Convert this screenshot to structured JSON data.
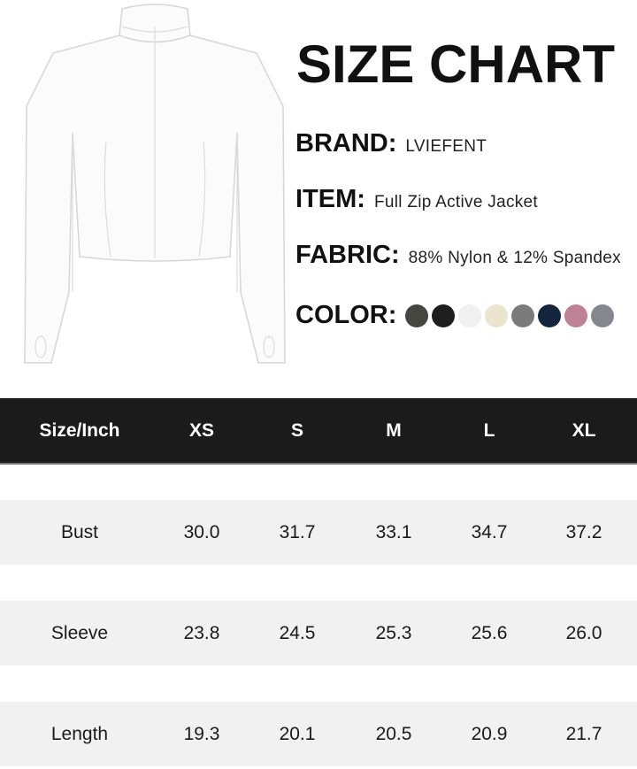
{
  "title": "SIZE CHART",
  "brand": {
    "label": "BRAND:",
    "value": "LVIEFENT"
  },
  "item": {
    "label": "ITEM:",
    "value": "Full Zip Active Jacket"
  },
  "fabric": {
    "label": "FABRIC:",
    "value": "88% Nylon & 12% Spandex"
  },
  "color": {
    "label": "COLOR:",
    "swatches": [
      "#45463f",
      "#1e1e1e",
      "#f0f0f0",
      "#ebe4cf",
      "#7b7b7b",
      "#14263d",
      "#bf8195",
      "#868690"
    ]
  },
  "product_image": "white full zip jacket with thumbholes",
  "table": {
    "headers": [
      "Size/Inch",
      "XS",
      "S",
      "M",
      "L",
      "XL"
    ],
    "rows": [
      {
        "label": "Bust",
        "values": [
          "30.0",
          "31.7",
          "33.1",
          "34.7",
          "37.2"
        ]
      },
      {
        "label": "Sleeve",
        "values": [
          "23.8",
          "24.5",
          "25.3",
          "25.6",
          "26.0"
        ]
      },
      {
        "label": "Length",
        "values": [
          "19.3",
          "20.1",
          "20.5",
          "20.9",
          "21.7"
        ]
      }
    ]
  }
}
